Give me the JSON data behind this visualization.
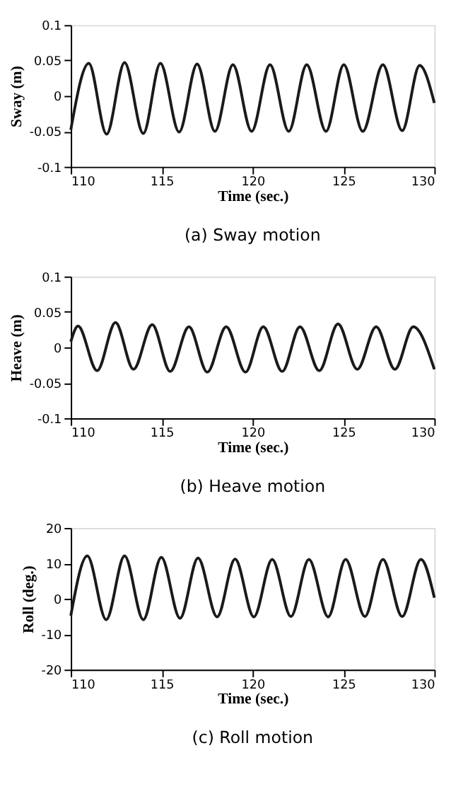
{
  "chart_data": [
    {
      "type": "line",
      "title": "(a) Sway motion",
      "xlabel": "Time (sec.)",
      "ylabel": "Sway (m)",
      "xlim": [
        110,
        130
      ],
      "xticks": [
        110,
        115,
        120,
        125,
        130
      ],
      "ylim": [
        -0.1,
        0.1
      ],
      "yticks": [
        -0.1,
        -0.05,
        0,
        0.05,
        0.1
      ],
      "grid": false,
      "marker": "none",
      "line_style": "solid",
      "series": [
        {
          "color": "#1a1a1a",
          "x": [
            110,
            110.99,
            111.97,
            112.96,
            113.99,
            114.93,
            115.96,
            116.95,
            117.93,
            118.92,
            119.95,
            120.96,
            121.99,
            122.98,
            124.04,
            125.02,
            126.06,
            127.17,
            128.23,
            129.19,
            130
          ],
          "values": [
            -0.048,
            0.046,
            -0.054,
            0.047,
            -0.053,
            0.046,
            -0.051,
            0.045,
            -0.05,
            0.044,
            -0.05,
            0.044,
            -0.05,
            0.044,
            -0.05,
            0.044,
            -0.05,
            0.044,
            -0.049,
            0.043,
            -0.01
          ]
        }
      ]
    },
    {
      "type": "line",
      "title": "(b) Heave motion",
      "xlabel": "Time (sec.)",
      "ylabel": "Heave (m)",
      "xlim": [
        110,
        130
      ],
      "xticks": [
        110,
        115,
        120,
        125,
        130
      ],
      "ylim": [
        -0.1,
        0.1
      ],
      "yticks": [
        -0.1,
        -0.05,
        0,
        0.05,
        0.1
      ],
      "grid": false,
      "marker": "none",
      "line_style": "solid",
      "series": [
        {
          "color": "#1a1a1a",
          "x": [
            110,
            110.4,
            111.45,
            112.46,
            113.45,
            114.48,
            115.47,
            116.5,
            117.51,
            118.55,
            119.61,
            120.59,
            121.63,
            122.61,
            123.67,
            124.7,
            125.76,
            126.8,
            127.83,
            128.84,
            130
          ],
          "values": [
            0.008,
            0.03,
            -0.033,
            0.035,
            -0.031,
            0.032,
            -0.034,
            0.029,
            -0.035,
            0.029,
            -0.035,
            0.029,
            -0.034,
            0.029,
            -0.033,
            0.033,
            -0.031,
            0.029,
            -0.031,
            0.029,
            -0.031
          ]
        }
      ]
    },
    {
      "type": "line",
      "title": "(c) Roll motion",
      "xlabel": "Time (sec.)",
      "ylabel": "Roll (deg.)",
      "xlim": [
        110,
        130
      ],
      "xticks": [
        110,
        115,
        120,
        125,
        130
      ],
      "ylim": [
        -20,
        20
      ],
      "yticks": [
        -20,
        -10,
        0,
        10,
        20
      ],
      "grid": false,
      "marker": "none",
      "line_style": "solid",
      "series": [
        {
          "color": "#1a1a1a",
          "x": [
            110,
            110.91,
            111.95,
            112.96,
            113.99,
            114.98,
            116.01,
            117.0,
            118.05,
            119.04,
            120.07,
            121.08,
            122.11,
            123.1,
            124.16,
            125.12,
            126.18,
            127.17,
            128.23,
            129.26,
            130
          ],
          "values": [
            -4.8,
            12.1,
            -5.9,
            12.1,
            -5.9,
            11.7,
            -5.5,
            11.5,
            -5.1,
            11.2,
            -5.1,
            11.1,
            -5.0,
            11.1,
            -5.1,
            11.1,
            -5.0,
            11.1,
            -5.0,
            11.1,
            0.3
          ]
        }
      ]
    }
  ]
}
